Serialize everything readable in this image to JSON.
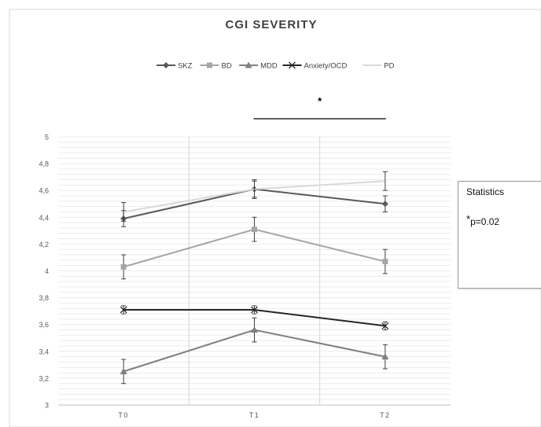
{
  "chart_data": {
    "type": "line",
    "title": "CGI SEVERITY",
    "categories": [
      "T0",
      "T1",
      "T2"
    ],
    "ylim": [
      3,
      5
    ],
    "y_ticks": [
      "3",
      "3,2",
      "3,4",
      "3,6",
      "3,8",
      "4",
      "4,2",
      "4,4",
      "4,6",
      "4,8",
      "5"
    ],
    "grid": true,
    "legend_position": "top",
    "series": [
      {
        "name": "SKZ",
        "values": [
          4.39,
          4.61,
          4.5
        ],
        "errors": [
          0.06,
          0.06,
          0.06
        ],
        "color": "#595959",
        "marker": "diamond"
      },
      {
        "name": "BD",
        "values": [
          4.03,
          4.31,
          4.07
        ],
        "errors": [
          0.09,
          0.09,
          0.09
        ],
        "color": "#a6a6a6",
        "marker": "square"
      },
      {
        "name": "MDD",
        "values": [
          3.25,
          3.56,
          3.36
        ],
        "errors": [
          0.09,
          0.09,
          0.09
        ],
        "color": "#7f7f7f",
        "marker": "triangle"
      },
      {
        "name": "Anxiety/OCD",
        "values": [
          3.71,
          3.71,
          3.59
        ],
        "errors": [
          0.03,
          0.03,
          0.03
        ],
        "color": "#262626",
        "marker": "x"
      },
      {
        "name": "PD",
        "values": [
          4.44,
          4.61,
          4.67
        ],
        "errors": [
          0.07,
          0.07,
          0.07
        ],
        "color": "#d9d9d9",
        "marker": "none"
      }
    ],
    "significance": {
      "label": "*",
      "from": "T1",
      "to": "T2"
    }
  },
  "statistics": {
    "title": "Statistics",
    "star": "*",
    "pvalue": "p=0.02"
  }
}
